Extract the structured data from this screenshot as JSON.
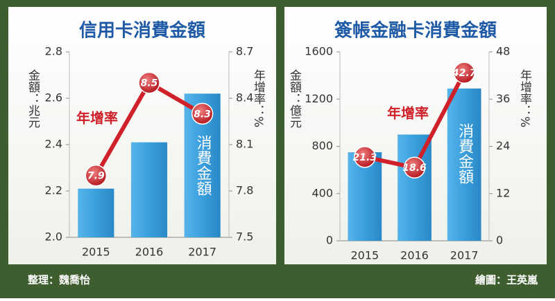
{
  "chart_data": [
    {
      "type": "combo",
      "title": "信用卡消費金額",
      "y_label": "金額：兆元",
      "y2_label": "年增率：%",
      "categories": [
        "2015",
        "2016",
        "2017"
      ],
      "series": [
        {
          "name": "消費金額",
          "type": "bar",
          "color": "#3a9fdc",
          "values": [
            2.21,
            2.41,
            2.62
          ]
        },
        {
          "name": "年增率",
          "type": "line",
          "axis": "y2",
          "color": "#d0202a",
          "values": [
            7.9,
            8.5,
            8.3
          ]
        }
      ],
      "ylim": [
        2.0,
        2.8
      ],
      "yticks": [
        {
          "value": 2.0,
          "label": "2.0"
        },
        2.2,
        2.4,
        2.6,
        2.8
      ],
      "y2lim": [
        7.5,
        8.7
      ],
      "y2ticks": [
        7.5,
        7.8,
        8.1,
        8.4,
        8.7
      ]
    },
    {
      "type": "combo",
      "title": "簽帳金融卡消費金額",
      "y_label": "金額：億元",
      "y2_label": "年增率：%",
      "categories": [
        "2015",
        "2016",
        "2017"
      ],
      "series": [
        {
          "name": "消費金額",
          "type": "bar",
          "color": "#3a9fdc",
          "values": [
            750,
            900,
            1290
          ]
        },
        {
          "name": "年增率",
          "type": "line",
          "axis": "y2",
          "color": "#d0202a",
          "values": [
            21.3,
            18.6,
            42.7
          ]
        }
      ],
      "ylim": [
        0,
        1600
      ],
      "yticks": [
        0,
        400,
        800,
        1200,
        1600
      ],
      "y2lim": [
        0,
        48
      ],
      "y2ticks": [
        0,
        12,
        24,
        36,
        48
      ]
    }
  ],
  "footer": {
    "left": "整理：魏喬怡",
    "right": "繪圖：王英嵐"
  }
}
